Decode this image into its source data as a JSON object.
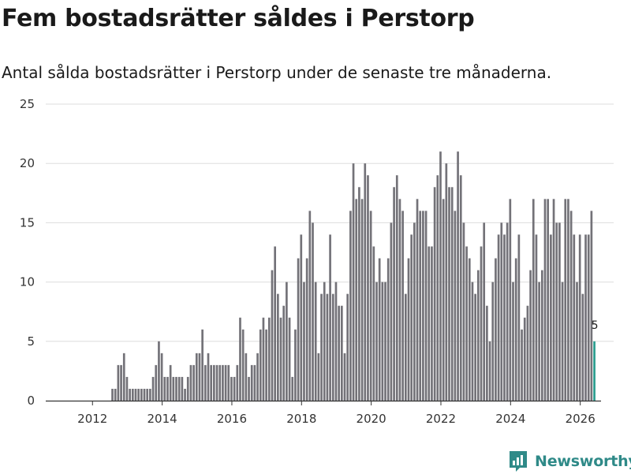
{
  "title": "Fem bostadsrätter såldes i Perstorp",
  "subtitle": "Antal sålda bostadsrätter i Perstorp under de senaste tre månaderna.",
  "brand": {
    "name": "Newsworthy"
  },
  "colors": {
    "bar": "#737278",
    "highlight": "#2a9d8f",
    "grid": "#dddddd",
    "axis": "#333333",
    "brand": "#2f8a88"
  },
  "chart_data": {
    "type": "bar",
    "title": "Fem bostadsrätter såldes i Perstorp",
    "subtitle": "Antal sålda bostadsrätter i Perstorp under de senaste tre månaderna.",
    "xlabel": "",
    "ylabel": "",
    "start": "2011-01",
    "frequency": "monthly",
    "xlim": [
      2010.7,
      2027.0
    ],
    "ylim": [
      0,
      25
    ],
    "yticks": [
      0,
      5,
      10,
      15,
      20,
      25
    ],
    "xticks": [
      2012,
      2014,
      2016,
      2018,
      2020,
      2022,
      2024,
      2026
    ],
    "grid": true,
    "highlight_last": true,
    "last_label": "5",
    "values": [
      0,
      0,
      0,
      0,
      0,
      0,
      0,
      0,
      0,
      0,
      0,
      0,
      0,
      0,
      0,
      0,
      0,
      0,
      0,
      1,
      1,
      3,
      3,
      4,
      2,
      1,
      1,
      1,
      1,
      1,
      1,
      1,
      1,
      2,
      3,
      5,
      4,
      2,
      2,
      3,
      2,
      2,
      2,
      2,
      1,
      2,
      3,
      3,
      4,
      4,
      6,
      3,
      4,
      3,
      3,
      3,
      3,
      3,
      3,
      3,
      2,
      2,
      3,
      7,
      6,
      4,
      2,
      3,
      3,
      4,
      6,
      7,
      6,
      7,
      11,
      13,
      9,
      7,
      8,
      10,
      7,
      2,
      6,
      12,
      14,
      10,
      12,
      16,
      15,
      10,
      4,
      9,
      10,
      9,
      14,
      9,
      10,
      8,
      8,
      4,
      9,
      16,
      20,
      17,
      18,
      17,
      20,
      19,
      16,
      13,
      10,
      12,
      10,
      10,
      12,
      15,
      18,
      19,
      17,
      16,
      9,
      12,
      14,
      15,
      17,
      16,
      16,
      16,
      13,
      13,
      18,
      19,
      21,
      17,
      20,
      18,
      18,
      16,
      21,
      19,
      15,
      13,
      12,
      10,
      9,
      11,
      13,
      15,
      8,
      5,
      10,
      12,
      14,
      15,
      14,
      15,
      17,
      10,
      12,
      14,
      6,
      7,
      8,
      11,
      17,
      14,
      10,
      11,
      17,
      17,
      14,
      17,
      15,
      15,
      10,
      17,
      17,
      16,
      14,
      10,
      14,
      9,
      14,
      14,
      16,
      5
    ]
  }
}
